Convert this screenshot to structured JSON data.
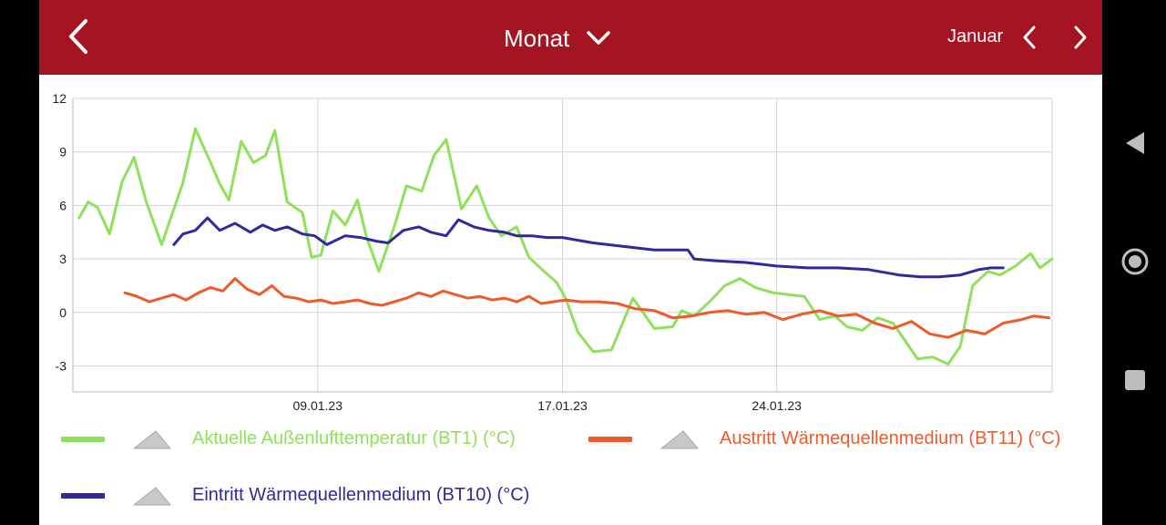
{
  "header": {
    "period_label": "Monat",
    "month_label": "Januar"
  },
  "colors": {
    "bar": "#a51422",
    "bt1": "#8fe05a",
    "bt11": "#f05a28",
    "bt10": "#2e2a9a"
  },
  "chart_data": {
    "type": "line",
    "xlabel": "",
    "ylabel": "",
    "ylim": [
      -4.5,
      12
    ],
    "y_ticks": [
      "12",
      "9",
      "6",
      "3",
      "0",
      "-3"
    ],
    "y_tick_values": [
      12,
      9,
      6,
      3,
      0,
      -3
    ],
    "x_tick_labels": [
      "09.01.23",
      "17.01.23",
      "24.01.23"
    ],
    "x_tick_values": [
      9,
      17,
      24
    ],
    "xlim": [
      1,
      33
    ],
    "grid": true,
    "legend_position": "bottom",
    "series": [
      {
        "name": "Aktuelle Außenlufttemperatur (BT1) (°C)",
        "color": "#8fe05a",
        "x": [
          1.2,
          1.5,
          1.8,
          2.2,
          2.6,
          3.0,
          3.4,
          3.9,
          4.3,
          4.6,
          5.0,
          5.5,
          5.8,
          6.1,
          6.5,
          6.9,
          7.3,
          7.6,
          8.0,
          8.5,
          8.8,
          9.1,
          9.5,
          9.9,
          10.3,
          10.6,
          11.0,
          11.5,
          11.9,
          12.4,
          12.8,
          13.2,
          13.7,
          14.2,
          14.6,
          15.0,
          15.5,
          15.9,
          16.4,
          16.8,
          17.1,
          17.5,
          18.0,
          18.6,
          19.3,
          20.0,
          20.6,
          20.9,
          21.3,
          21.8,
          22.3,
          22.8,
          23.3,
          23.9,
          24.4,
          24.9,
          25.4,
          25.9,
          26.3,
          26.8,
          27.3,
          27.8,
          28.2,
          28.6,
          29.1,
          29.6,
          30.0,
          30.4,
          30.9,
          31.3,
          31.8,
          32.3,
          32.6,
          33.0
        ],
        "y": [
          5.3,
          6.2,
          5.9,
          4.4,
          7.3,
          8.7,
          6.2,
          3.8,
          5.8,
          7.3,
          10.3,
          8.4,
          7.2,
          6.3,
          9.6,
          8.4,
          8.8,
          10.2,
          6.2,
          5.6,
          3.1,
          3.2,
          5.7,
          4.9,
          6.3,
          4.2,
          2.3,
          4.8,
          7.1,
          6.8,
          8.8,
          9.7,
          5.8,
          7.1,
          5.3,
          4.3,
          4.8,
          3.1,
          2.3,
          1.7,
          0.8,
          -1.1,
          -2.2,
          -2.1,
          0.8,
          -0.9,
          -0.8,
          0.1,
          -0.2,
          0.6,
          1.5,
          1.9,
          1.4,
          1.1,
          1.0,
          0.9,
          -0.4,
          -0.2,
          -0.8,
          -1.0,
          -0.3,
          -0.6,
          -1.6,
          -2.6,
          -2.5,
          -2.9,
          -1.9,
          1.5,
          2.3,
          2.1,
          2.6,
          3.3,
          2.5,
          3.0
        ]
      },
      {
        "name": "Austritt Wärmequellenmedium (BT11) (°C)",
        "color": "#f05a28",
        "x": [
          2.7,
          3.1,
          3.5,
          3.9,
          4.3,
          4.7,
          5.1,
          5.5,
          5.9,
          6.3,
          6.7,
          7.1,
          7.5,
          7.9,
          8.3,
          8.7,
          9.1,
          9.5,
          9.9,
          10.3,
          10.7,
          11.1,
          11.5,
          11.9,
          12.3,
          12.7,
          13.1,
          13.5,
          13.9,
          14.3,
          14.7,
          15.1,
          15.5,
          15.9,
          16.3,
          16.7,
          17.1,
          17.6,
          18.2,
          18.8,
          19.4,
          20.0,
          20.6,
          21.2,
          21.8,
          22.4,
          23.0,
          23.6,
          24.2,
          24.8,
          25.4,
          26.0,
          26.6,
          27.2,
          27.8,
          28.4,
          29.0,
          29.6,
          30.2,
          30.8,
          31.4,
          32.0,
          32.4,
          32.9
        ],
        "y": [
          1.1,
          0.9,
          0.6,
          0.8,
          1.0,
          0.7,
          1.1,
          1.4,
          1.2,
          1.9,
          1.3,
          1.0,
          1.5,
          0.9,
          0.8,
          0.6,
          0.7,
          0.5,
          0.6,
          0.7,
          0.5,
          0.4,
          0.6,
          0.8,
          1.1,
          0.9,
          1.2,
          1.0,
          0.8,
          0.9,
          0.7,
          0.8,
          0.6,
          0.9,
          0.5,
          0.6,
          0.7,
          0.6,
          0.6,
          0.5,
          0.2,
          0.1,
          -0.3,
          -0.2,
          0.0,
          0.1,
          -0.1,
          0.0,
          -0.4,
          -0.1,
          0.1,
          -0.2,
          -0.1,
          -0.6,
          -0.9,
          -0.5,
          -1.2,
          -1.4,
          -1.0,
          -1.2,
          -0.6,
          -0.4,
          -0.2,
          -0.3
        ]
      },
      {
        "name": "Eintritt Wärmequellenmedium (BT10) (°C)",
        "color": "#2e2a9a",
        "x": [
          4.3,
          4.6,
          5.0,
          5.4,
          5.8,
          6.3,
          6.8,
          7.2,
          7.6,
          8.0,
          8.5,
          8.9,
          9.3,
          9.9,
          10.4,
          10.9,
          11.3,
          11.8,
          12.3,
          12.7,
          13.2,
          13.6,
          14.1,
          14.6,
          15.1,
          15.5,
          16.0,
          16.5,
          17.0,
          18.0,
          19.0,
          20.0,
          21.1,
          21.3,
          22.0,
          23.0,
          24.0,
          25.0,
          26.0,
          27.0,
          28.0,
          28.7,
          29.3,
          30.0,
          30.6,
          31.0,
          31.4
        ],
        "y": [
          3.8,
          4.4,
          4.6,
          5.3,
          4.6,
          5.0,
          4.5,
          4.9,
          4.6,
          4.8,
          4.4,
          4.3,
          3.8,
          4.3,
          4.2,
          4.0,
          3.9,
          4.6,
          4.8,
          4.5,
          4.3,
          5.2,
          4.8,
          4.6,
          4.5,
          4.3,
          4.3,
          4.2,
          4.2,
          3.9,
          3.7,
          3.5,
          3.5,
          3.0,
          2.9,
          2.8,
          2.6,
          2.5,
          2.5,
          2.4,
          2.1,
          2.0,
          2.0,
          2.1,
          2.4,
          2.5,
          2.5
        ]
      }
    ]
  }
}
